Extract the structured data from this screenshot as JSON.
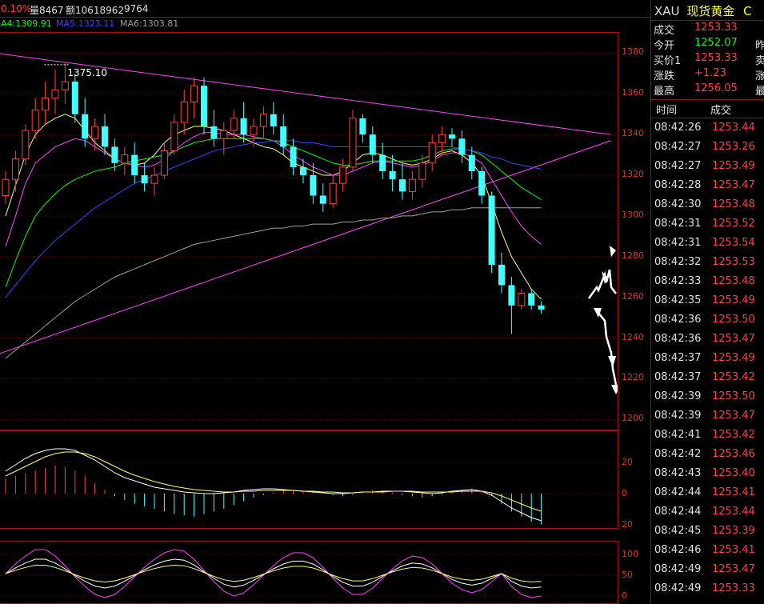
{
  "header": {
    "pct": "0.10%",
    "volume": "量8467",
    "amount": "额10618962",
    "extra": "9764"
  },
  "ma_legend": {
    "ma4": "A4:1309.91",
    "ma5": "MA5:1323.11",
    "ma6": "MA6:1303.81"
  },
  "annotation": {
    "high_label": "1375.10"
  },
  "price_axis": [
    "1380",
    "1360",
    "1340",
    "1320",
    "1300",
    "1280",
    "1260",
    "1240",
    "1220",
    "1200"
  ],
  "macd_axis": [
    "20",
    "0",
    "20"
  ],
  "kdj_axis": [
    "100",
    "50",
    "0"
  ],
  "quote": {
    "code": "XAU",
    "name": "现货黄金",
    "name_suffix": "C",
    "rows": [
      {
        "label": "成交",
        "value": "1253.33",
        "tail": ""
      },
      {
        "label": "今开",
        "value": "1252.07",
        "tail": "昨"
      },
      {
        "label": "买价1",
        "value": "1253.33",
        "tail": "卖"
      },
      {
        "label": "涨跌",
        "value": "+1.23",
        "tail": "涨"
      },
      {
        "label": "最高",
        "value": "1256.05",
        "tail": "最"
      }
    ]
  },
  "ticks_header": {
    "time": "时间",
    "price": "成交"
  },
  "ticks": [
    {
      "time": "08:42:26",
      "price": "1253.44"
    },
    {
      "time": "08:42:27",
      "price": "1253.26"
    },
    {
      "time": "08:42:27",
      "price": "1253.49"
    },
    {
      "time": "08:42:28",
      "price": "1253.47"
    },
    {
      "time": "08:42:30",
      "price": "1253.48"
    },
    {
      "time": "08:42:31",
      "price": "1253.52"
    },
    {
      "time": "08:42:31",
      "price": "1253.54"
    },
    {
      "time": "08:42:32",
      "price": "1253.53"
    },
    {
      "time": "08:42:33",
      "price": "1253.48"
    },
    {
      "time": "08:42:35",
      "price": "1253.49"
    },
    {
      "time": "08:42:36",
      "price": "1253.50"
    },
    {
      "time": "08:42:36",
      "price": "1253.47"
    },
    {
      "time": "08:42:37",
      "price": "1253.49"
    },
    {
      "time": "08:42:37",
      "price": "1253.42"
    },
    {
      "time": "08:42:39",
      "price": "1253.50"
    },
    {
      "time": "08:42:39",
      "price": "1253.47"
    },
    {
      "time": "08:42:41",
      "price": "1253.42"
    },
    {
      "time": "08:42:42",
      "price": "1253.46"
    },
    {
      "time": "08:42:43",
      "price": "1253.40"
    },
    {
      "time": "08:42:44",
      "price": "1253.41"
    },
    {
      "time": "08:42:44",
      "price": "1253.44"
    },
    {
      "time": "08:42:45",
      "price": "1253.39"
    },
    {
      "time": "08:42:46",
      "price": "1253.41"
    },
    {
      "time": "08:42:49",
      "price": "1253.47"
    },
    {
      "time": "08:42:49",
      "price": "1253.33"
    }
  ],
  "colors": {
    "up": "#ff4040",
    "down": "#40ffff",
    "grid": "#a01010",
    "label": "#e03030",
    "yellow": "#ffff66",
    "green": "#00ff00",
    "magenta": "#ff40ff",
    "blue": "#4040ff",
    "gray": "#a0a0a0"
  },
  "chart_data": {
    "type": "candlestick",
    "y_range": [
      1195,
      1390
    ],
    "candles": [
      [
        1310,
        1322,
        1306,
        1318
      ],
      [
        1318,
        1332,
        1312,
        1328
      ],
      [
        1328,
        1345,
        1325,
        1342
      ],
      [
        1342,
        1358,
        1338,
        1352
      ],
      [
        1352,
        1366,
        1345,
        1358
      ],
      [
        1358,
        1372,
        1350,
        1362
      ],
      [
        1362,
        1375.1,
        1355,
        1366
      ],
      [
        1366,
        1370,
        1346,
        1350
      ],
      [
        1350,
        1358,
        1334,
        1338
      ],
      [
        1338,
        1348,
        1332,
        1344
      ],
      [
        1344,
        1350,
        1330,
        1334
      ],
      [
        1334,
        1338,
        1322,
        1326
      ],
      [
        1326,
        1334,
        1320,
        1330
      ],
      [
        1330,
        1336,
        1316,
        1320
      ],
      [
        1320,
        1326,
        1312,
        1316
      ],
      [
        1316,
        1324,
        1310,
        1320
      ],
      [
        1320,
        1336,
        1318,
        1332
      ],
      [
        1332,
        1350,
        1330,
        1346
      ],
      [
        1346,
        1362,
        1340,
        1356
      ],
      [
        1356,
        1368,
        1348,
        1364
      ],
      [
        1364,
        1368,
        1340,
        1344
      ],
      [
        1344,
        1352,
        1334,
        1338
      ],
      [
        1338,
        1346,
        1330,
        1342
      ],
      [
        1342,
        1352,
        1338,
        1348
      ],
      [
        1348,
        1356,
        1336,
        1340
      ],
      [
        1340,
        1348,
        1334,
        1344
      ],
      [
        1344,
        1354,
        1338,
        1350
      ],
      [
        1350,
        1356,
        1340,
        1344
      ],
      [
        1344,
        1350,
        1330,
        1334
      ],
      [
        1334,
        1338,
        1320,
        1324
      ],
      [
        1324,
        1328,
        1316,
        1320
      ],
      [
        1320,
        1326,
        1306,
        1310
      ],
      [
        1310,
        1316,
        1302,
        1306
      ],
      [
        1306,
        1320,
        1304,
        1316
      ],
      [
        1316,
        1328,
        1312,
        1324
      ],
      [
        1324,
        1352,
        1322,
        1348
      ],
      [
        1348,
        1350,
        1336,
        1340
      ],
      [
        1340,
        1344,
        1326,
        1330
      ],
      [
        1330,
        1336,
        1318,
        1322
      ],
      [
        1322,
        1330,
        1312,
        1318
      ],
      [
        1318,
        1326,
        1308,
        1312
      ],
      [
        1312,
        1322,
        1308,
        1318
      ],
      [
        1318,
        1330,
        1314,
        1326
      ],
      [
        1326,
        1340,
        1322,
        1336
      ],
      [
        1336,
        1344,
        1330,
        1340
      ],
      [
        1340,
        1343,
        1334,
        1338
      ],
      [
        1338,
        1342,
        1326,
        1330
      ],
      [
        1330,
        1334,
        1318,
        1322
      ],
      [
        1322,
        1324,
        1306,
        1310
      ],
      [
        1310,
        1312,
        1272,
        1276
      ],
      [
        1276,
        1282,
        1262,
        1266
      ],
      [
        1266,
        1270,
        1242,
        1256
      ],
      [
        1256,
        1264,
        1254,
        1262
      ],
      [
        1262,
        1264,
        1254,
        1256
      ],
      [
        1256,
        1258,
        1252,
        1254
      ]
    ],
    "ma_lines": [
      {
        "color": "#ffff66",
        "values": [
          1300,
          1315,
          1330,
          1340,
          1345,
          1348,
          1350,
          1348,
          1342,
          1336,
          1332,
          1328,
          1326,
          1325,
          1326,
          1330,
          1336,
          1340,
          1342,
          1344,
          1344,
          1343,
          1342,
          1340,
          1338,
          1336,
          1334,
          1333,
          1330,
          1326,
          1324,
          1322,
          1320,
          1320,
          1322,
          1326,
          1330,
          1331,
          1330,
          1328,
          1326,
          1325,
          1326,
          1328,
          1331,
          1332,
          1330,
          1326,
          1320,
          1306,
          1292,
          1280,
          1272,
          1264,
          1259
        ]
      },
      {
        "color": "#ff40ff",
        "values": [
          1285,
          1300,
          1316,
          1326,
          1330,
          1334,
          1336,
          1338,
          1337,
          1334,
          1331,
          1328,
          1326,
          1325,
          1324,
          1325,
          1328,
          1332,
          1336,
          1339,
          1341,
          1341,
          1340,
          1340,
          1340,
          1339,
          1338,
          1337,
          1334,
          1330,
          1327,
          1324,
          1322,
          1320,
          1320,
          1322,
          1324,
          1326,
          1327,
          1326,
          1325,
          1324,
          1325,
          1327,
          1330,
          1331,
          1331,
          1329,
          1326,
          1318,
          1310,
          1302,
          1295,
          1290,
          1286
        ]
      },
      {
        "color": "#00ff00",
        "values": [
          1265,
          1278,
          1290,
          1300,
          1306,
          1311,
          1315,
          1318,
          1320,
          1322,
          1323,
          1324,
          1326,
          1327,
          1328,
          1329,
          1330,
          1332,
          1334,
          1336,
          1337,
          1338,
          1338,
          1338,
          1338,
          1338,
          1338,
          1337,
          1336,
          1334,
          1332,
          1330,
          1328,
          1326,
          1325,
          1325,
          1326,
          1327,
          1327,
          1327,
          1327,
          1327,
          1328,
          1330,
          1332,
          1333,
          1333,
          1332,
          1330,
          1326,
          1322,
          1318,
          1314,
          1311,
          1308
        ]
      },
      {
        "color": "#4040ff",
        "values": [
          1260,
          1266,
          1272,
          1278,
          1283,
          1288,
          1292,
          1296,
          1300,
          1304,
          1307,
          1310,
          1313,
          1316,
          1318,
          1320,
          1322,
          1324,
          1326,
          1328,
          1330,
          1332,
          1333,
          1334,
          1335,
          1336,
          1336,
          1337,
          1337,
          1337,
          1336,
          1336,
          1335,
          1334,
          1334,
          1334,
          1334,
          1334,
          1334,
          1334,
          1334,
          1334,
          1334,
          1334,
          1334,
          1334,
          1333,
          1332,
          1331,
          1329,
          1328,
          1326,
          1325,
          1324,
          1323
        ]
      },
      {
        "color": "#a0a0a0",
        "values": [
          1230,
          1234,
          1238,
          1242,
          1246,
          1250,
          1254,
          1258,
          1261,
          1264,
          1267,
          1270,
          1272,
          1274,
          1276,
          1278,
          1280,
          1282,
          1284,
          1286,
          1287,
          1288,
          1289,
          1290,
          1291,
          1292,
          1293,
          1294,
          1294,
          1295,
          1295,
          1296,
          1296,
          1296,
          1297,
          1297,
          1298,
          1298,
          1299,
          1299,
          1300,
          1300,
          1301,
          1302,
          1302,
          1303,
          1303,
          1304,
          1304,
          1304,
          1304,
          1304,
          1304,
          1304,
          1304
        ]
      }
    ],
    "trendlines": [
      {
        "from": [
          -1,
          1380
        ],
        "to": [
          61,
          1340
        ]
      },
      {
        "from": [
          -2,
          1230
        ],
        "to": [
          61,
          1337
        ]
      }
    ]
  }
}
